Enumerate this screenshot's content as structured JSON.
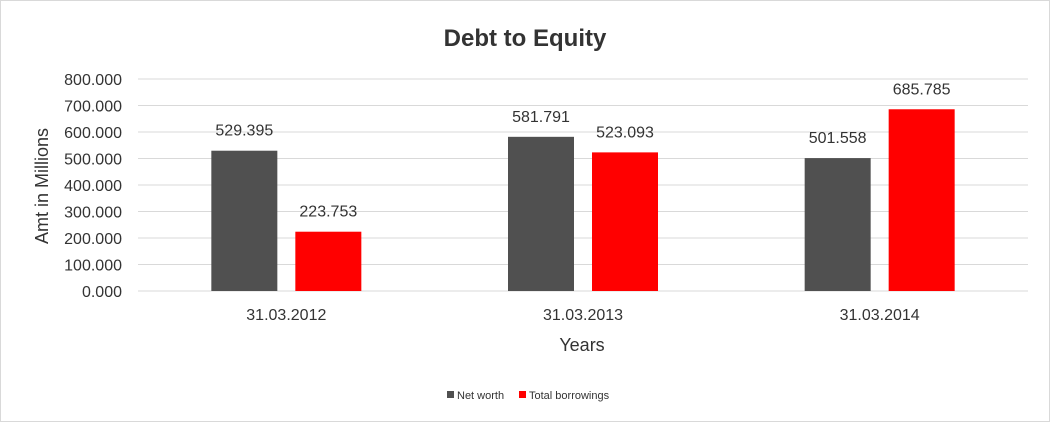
{
  "chart_data": {
    "type": "bar",
    "title": "Debt to Equity",
    "xlabel": "Years",
    "ylabel": "Amt in Millions",
    "categories": [
      "31.03.2012",
      "31.03.2013",
      "31.03.2014"
    ],
    "series": [
      {
        "name": "Net worth",
        "values": [
          529.395,
          581.791,
          501.558
        ],
        "value_labels": [
          "529.395",
          "581.791",
          "501.558"
        ],
        "color": "#505050"
      },
      {
        "name": "Total borrowings",
        "values": [
          223.753,
          523.093,
          685.785
        ],
        "value_labels": [
          "223.753",
          "523.093",
          "685.785"
        ],
        "color": "#ff0000"
      }
    ],
    "ylim": [
      0,
      800
    ],
    "yticks": [
      0,
      100,
      200,
      300,
      400,
      500,
      600,
      700,
      800
    ],
    "ytick_labels": [
      "0.000",
      "100.000",
      "200.000",
      "300.000",
      "400.000",
      "500.000",
      "600.000",
      "700.000",
      "800.000"
    ],
    "grid": true,
    "legend_position": "bottom"
  }
}
